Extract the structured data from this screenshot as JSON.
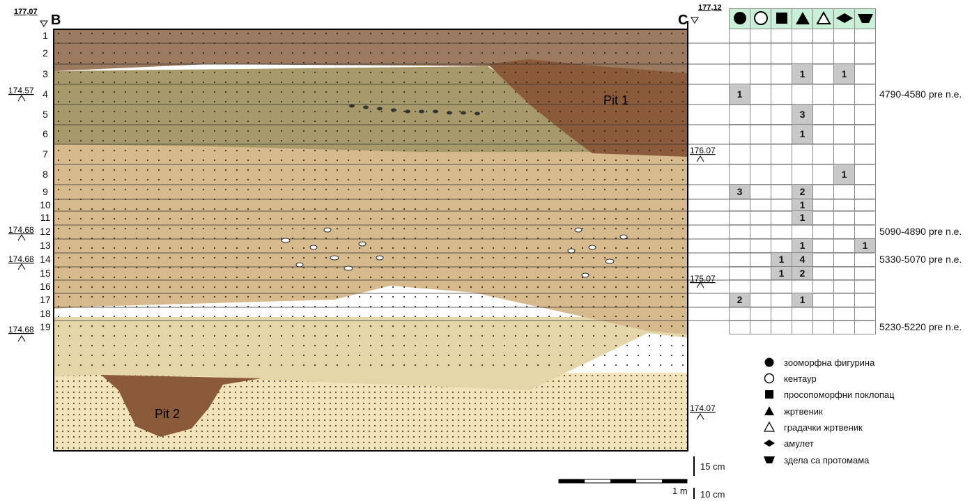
{
  "profile": {
    "left_label": "B",
    "right_label": "C",
    "left_top_elev": "177,07",
    "right_top_elev": "177,12",
    "pits": [
      "Pit 1",
      "Pit 2"
    ],
    "right_elevations": [
      "176.07",
      "175.07",
      "174.07"
    ],
    "left_elevations": [
      "174.57",
      "174.68",
      "174.68",
      "174.68"
    ],
    "layers": [
      "1",
      "2",
      "3",
      "4",
      "5",
      "6",
      "7",
      "8",
      "9",
      "10",
      "11",
      "12",
      "13",
      "14",
      "15",
      "16",
      "17",
      "18",
      "19"
    ]
  },
  "finds_table": {
    "columns": [
      "zoomorphic-figurine",
      "centaur",
      "prosopomorphic-lid",
      "altar",
      "house-altar",
      "amulet",
      "bowl-protome"
    ],
    "rows": [
      [
        "",
        "",
        "",
        "",
        "",
        "",
        ""
      ],
      [
        "",
        "",
        "",
        "",
        "",
        "",
        ""
      ],
      [
        "",
        "",
        "",
        "1",
        "",
        "1",
        ""
      ],
      [
        "1",
        "",
        "",
        "",
        "",
        "",
        ""
      ],
      [
        "",
        "",
        "",
        "3",
        "",
        "",
        ""
      ],
      [
        "",
        "",
        "",
        "1",
        "",
        "",
        ""
      ],
      [
        "",
        "",
        "",
        "",
        "",
        "",
        ""
      ],
      [
        "",
        "",
        "",
        "",
        "",
        "1",
        ""
      ],
      [
        "3",
        "",
        "",
        "2",
        "",
        "",
        ""
      ],
      [
        "",
        "",
        "",
        "1",
        "",
        "",
        ""
      ],
      [
        "",
        "",
        "",
        "1",
        "",
        "",
        ""
      ],
      [
        "",
        "",
        "",
        "",
        "",
        "",
        ""
      ],
      [
        "",
        "",
        "",
        "1",
        "",
        "",
        "1"
      ],
      [
        "",
        "",
        "1",
        "4",
        "",
        "",
        ""
      ],
      [
        "",
        "",
        "1",
        "2",
        "",
        "",
        ""
      ],
      [
        "",
        "",
        "",
        "",
        "",
        "",
        ""
      ],
      [
        "2",
        "",
        "",
        "1",
        "",
        "",
        ""
      ],
      [
        "",
        "",
        "",
        "",
        "",
        "",
        ""
      ],
      [
        "",
        "",
        "",
        "",
        "",
        "",
        ""
      ]
    ]
  },
  "dates": [
    {
      "row": 4,
      "text": "4790-4580 pre n.e."
    },
    {
      "row": 12,
      "text": "5090-4890 pre n.e."
    },
    {
      "row": 14,
      "text": "5330-5070 pre n.e."
    },
    {
      "row": 19,
      "text": "5230-5220 pre n.e."
    }
  ],
  "legend": [
    {
      "symbol": "filled-circle",
      "label": "зооморфна фигурина"
    },
    {
      "symbol": "open-circle",
      "label": "кентаур"
    },
    {
      "symbol": "filled-square",
      "label": "просопоморфни поклопац"
    },
    {
      "symbol": "filled-triangle",
      "label": "жртвеник"
    },
    {
      "symbol": "open-triangle",
      "label": "градачки жртвеник"
    },
    {
      "symbol": "filled-diamond",
      "label": "амулет"
    },
    {
      "symbol": "filled-bowl",
      "label": "здела са протомама"
    }
  ],
  "scale": {
    "vertical_label": "15 cm",
    "bar_label": "1 m",
    "bottom_label": "10 cm"
  },
  "colors": {
    "dark_brown": "#9b7a60",
    "olive": "#a79969",
    "tan": "#d6b98c",
    "pale": "#e5d6aa",
    "cream": "#f2e3b9",
    "pit": "#8a5a3a",
    "header": "#c8f0d6",
    "cell": "#c8c8c8"
  }
}
